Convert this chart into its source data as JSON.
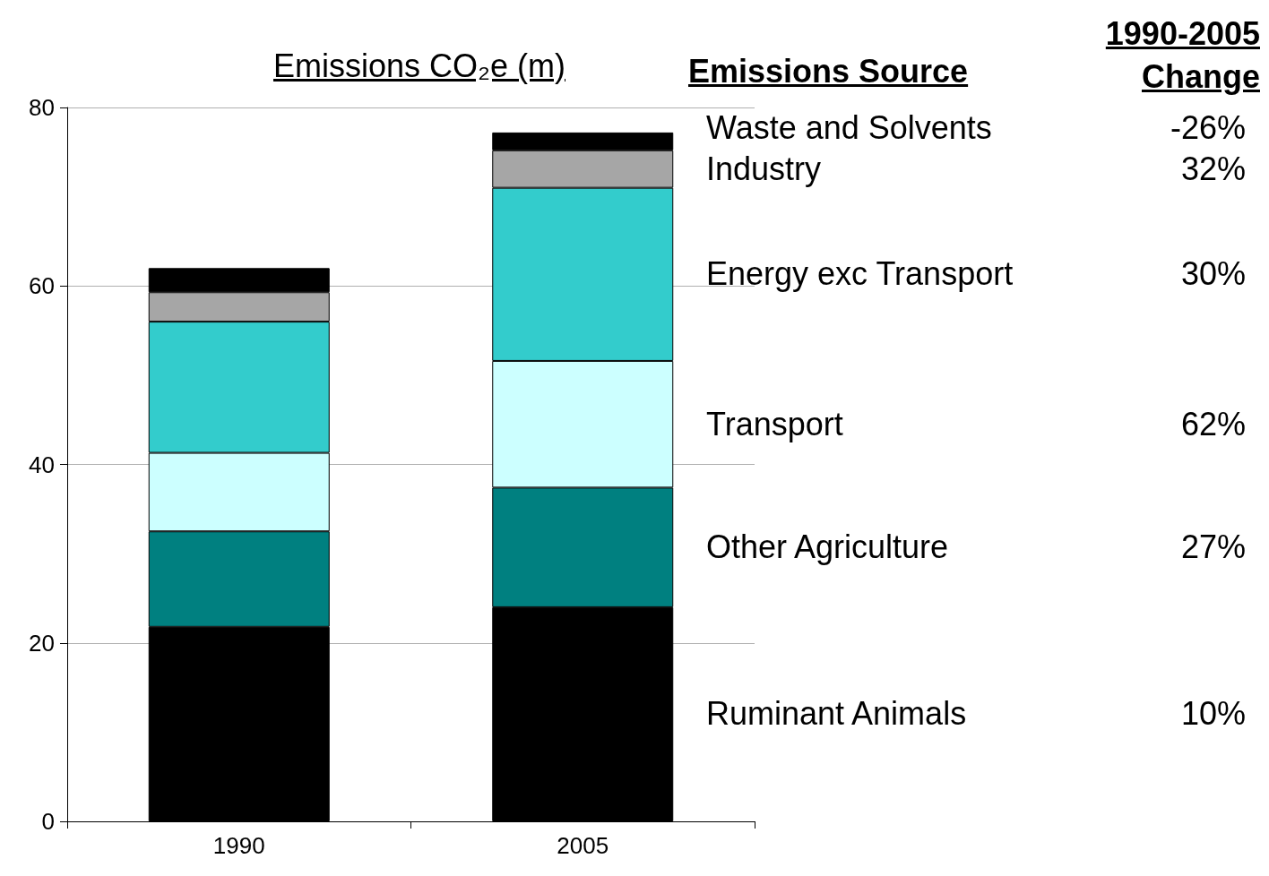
{
  "chart_data": {
    "type": "bar",
    "stacked": true,
    "title": "Emissions CO₂e (m)",
    "legend_title": "Emissions Source",
    "categories": [
      "1990",
      "2005"
    ],
    "series": [
      {
        "name": "Ruminant Animals",
        "color": "#000000",
        "values": [
          21.8,
          24.0
        ]
      },
      {
        "name": "Other Agriculture",
        "color": "#008080",
        "values": [
          10.7,
          13.4
        ]
      },
      {
        "name": "Transport",
        "color": "#ccffff",
        "values": [
          8.8,
          14.2
        ]
      },
      {
        "name": "Energy exc Transport",
        "color": "#33cccc",
        "values": [
          14.7,
          19.4
        ]
      },
      {
        "name": "Industry",
        "color": "#a6a6a6",
        "values": [
          3.3,
          4.2
        ]
      },
      {
        "name": "Waste and Solvents",
        "color": "#000000",
        "values": [
          2.7,
          2.0
        ]
      }
    ],
    "annotations": [
      "1990-2005 Change",
      "10%",
      "27%",
      "62%",
      "30%",
      "32%",
      "-26%"
    ],
    "ylim": [
      0,
      80
    ],
    "yticks": [
      0,
      20,
      40,
      60,
      80
    ],
    "grid": "y",
    "legend": "right"
  }
}
